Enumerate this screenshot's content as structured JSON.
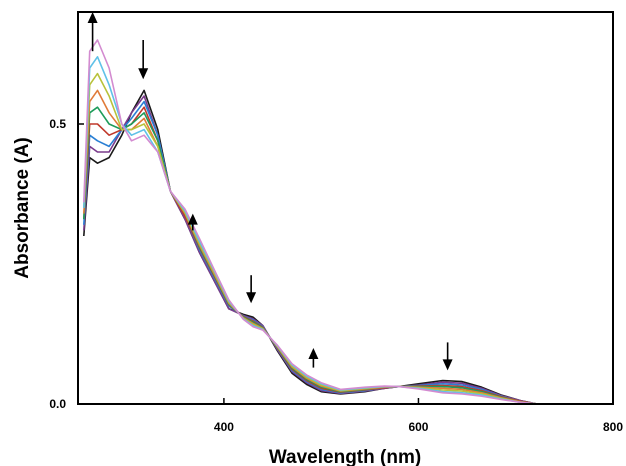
{
  "chart_data": {
    "type": "line",
    "xlabel": "Wavelength (nm)",
    "ylabel": "Absorbance (A)",
    "xlim": [
      250,
      800
    ],
    "ylim": [
      0.0,
      0.7
    ],
    "x_ticks": [
      400,
      600,
      800
    ],
    "x_tick_labels": [
      "400",
      "600",
      "800"
    ],
    "y_ticks": [
      0.0,
      0.5
    ],
    "y_tick_labels": [
      "0.0",
      "0.5"
    ],
    "grid": false,
    "legend": "none",
    "series_count_note_free": true,
    "series": [
      {
        "color": "#1a1a1a",
        "values": [
          [
            256,
            0.3
          ],
          [
            262,
            0.44
          ],
          [
            270,
            0.43
          ],
          [
            282,
            0.44
          ],
          [
            295,
            0.48
          ],
          [
            305,
            0.52
          ],
          [
            318,
            0.56
          ],
          [
            332,
            0.49
          ],
          [
            345,
            0.38
          ],
          [
            360,
            0.33
          ],
          [
            375,
            0.27
          ],
          [
            390,
            0.22
          ],
          [
            405,
            0.17
          ],
          [
            420,
            0.16
          ],
          [
            430,
            0.155
          ],
          [
            440,
            0.14
          ],
          [
            455,
            0.095
          ],
          [
            470,
            0.055
          ],
          [
            485,
            0.035
          ],
          [
            500,
            0.022
          ],
          [
            520,
            0.018
          ],
          [
            545,
            0.022
          ],
          [
            565,
            0.028
          ],
          [
            580,
            0.031
          ],
          [
            600,
            0.036
          ],
          [
            625,
            0.042
          ],
          [
            645,
            0.04
          ],
          [
            665,
            0.03
          ],
          [
            685,
            0.016
          ],
          [
            705,
            0.006
          ],
          [
            722,
            0.0
          ]
        ]
      },
      {
        "color": "#7a3b8c",
        "values": [
          [
            256,
            0.31
          ],
          [
            262,
            0.46
          ],
          [
            270,
            0.45
          ],
          [
            282,
            0.45
          ],
          [
            295,
            0.49
          ],
          [
            305,
            0.52
          ],
          [
            318,
            0.55
          ],
          [
            332,
            0.48
          ],
          [
            345,
            0.38
          ],
          [
            360,
            0.33
          ],
          [
            375,
            0.27
          ],
          [
            390,
            0.22
          ],
          [
            405,
            0.17
          ],
          [
            420,
            0.158
          ],
          [
            430,
            0.152
          ],
          [
            440,
            0.14
          ],
          [
            455,
            0.097
          ],
          [
            470,
            0.058
          ],
          [
            485,
            0.038
          ],
          [
            500,
            0.024
          ],
          [
            520,
            0.019
          ],
          [
            545,
            0.023
          ],
          [
            565,
            0.028
          ],
          [
            580,
            0.031
          ],
          [
            600,
            0.034
          ],
          [
            625,
            0.039
          ],
          [
            645,
            0.037
          ],
          [
            665,
            0.028
          ],
          [
            685,
            0.015
          ],
          [
            705,
            0.006
          ],
          [
            722,
            0.0
          ]
        ]
      },
      {
        "color": "#2a7fd4",
        "values": [
          [
            256,
            0.32
          ],
          [
            262,
            0.48
          ],
          [
            270,
            0.47
          ],
          [
            282,
            0.46
          ],
          [
            295,
            0.49
          ],
          [
            305,
            0.51
          ],
          [
            318,
            0.54
          ],
          [
            332,
            0.48
          ],
          [
            345,
            0.38
          ],
          [
            360,
            0.335
          ],
          [
            375,
            0.275
          ],
          [
            390,
            0.225
          ],
          [
            405,
            0.175
          ],
          [
            420,
            0.157
          ],
          [
            430,
            0.15
          ],
          [
            440,
            0.138
          ],
          [
            455,
            0.099
          ],
          [
            470,
            0.06
          ],
          [
            485,
            0.04
          ],
          [
            500,
            0.026
          ],
          [
            520,
            0.02
          ],
          [
            545,
            0.024
          ],
          [
            565,
            0.029
          ],
          [
            580,
            0.031
          ],
          [
            600,
            0.033
          ],
          [
            625,
            0.036
          ],
          [
            645,
            0.034
          ],
          [
            665,
            0.026
          ],
          [
            685,
            0.014
          ],
          [
            705,
            0.005
          ],
          [
            722,
            0.0
          ]
        ]
      },
      {
        "color": "#c0392b",
        "values": [
          [
            256,
            0.33
          ],
          [
            262,
            0.5
          ],
          [
            270,
            0.5
          ],
          [
            282,
            0.48
          ],
          [
            295,
            0.49
          ],
          [
            305,
            0.5
          ],
          [
            318,
            0.53
          ],
          [
            332,
            0.47
          ],
          [
            345,
            0.38
          ],
          [
            360,
            0.335
          ],
          [
            375,
            0.278
          ],
          [
            390,
            0.228
          ],
          [
            405,
            0.177
          ],
          [
            420,
            0.156
          ],
          [
            430,
            0.148
          ],
          [
            440,
            0.137
          ],
          [
            455,
            0.1
          ],
          [
            470,
            0.062
          ],
          [
            485,
            0.042
          ],
          [
            500,
            0.028
          ],
          [
            520,
            0.021
          ],
          [
            545,
            0.025
          ],
          [
            565,
            0.029
          ],
          [
            580,
            0.031
          ],
          [
            600,
            0.032
          ],
          [
            625,
            0.033
          ],
          [
            645,
            0.031
          ],
          [
            665,
            0.024
          ],
          [
            685,
            0.013
          ],
          [
            705,
            0.005
          ],
          [
            722,
            0.0
          ]
        ]
      },
      {
        "color": "#1e9c5a",
        "values": [
          [
            256,
            0.33
          ],
          [
            262,
            0.52
          ],
          [
            270,
            0.53
          ],
          [
            282,
            0.5
          ],
          [
            295,
            0.49
          ],
          [
            305,
            0.5
          ],
          [
            318,
            0.52
          ],
          [
            332,
            0.47
          ],
          [
            345,
            0.38
          ],
          [
            360,
            0.34
          ],
          [
            375,
            0.28
          ],
          [
            390,
            0.23
          ],
          [
            405,
            0.178
          ],
          [
            420,
            0.155
          ],
          [
            430,
            0.146
          ],
          [
            440,
            0.136
          ],
          [
            455,
            0.101
          ],
          [
            470,
            0.064
          ],
          [
            485,
            0.044
          ],
          [
            500,
            0.03
          ],
          [
            520,
            0.022
          ],
          [
            545,
            0.026
          ],
          [
            565,
            0.03
          ],
          [
            580,
            0.031
          ],
          [
            600,
            0.031
          ],
          [
            625,
            0.031
          ],
          [
            645,
            0.029
          ],
          [
            665,
            0.022
          ],
          [
            685,
            0.012
          ],
          [
            705,
            0.004
          ],
          [
            722,
            0.0
          ]
        ]
      },
      {
        "color": "#e07b39",
        "values": [
          [
            256,
            0.34
          ],
          [
            262,
            0.54
          ],
          [
            270,
            0.56
          ],
          [
            282,
            0.52
          ],
          [
            295,
            0.49
          ],
          [
            305,
            0.49
          ],
          [
            318,
            0.51
          ],
          [
            332,
            0.46
          ],
          [
            345,
            0.38
          ],
          [
            360,
            0.34
          ],
          [
            375,
            0.283
          ],
          [
            390,
            0.232
          ],
          [
            405,
            0.18
          ],
          [
            420,
            0.154
          ],
          [
            430,
            0.144
          ],
          [
            440,
            0.135
          ],
          [
            455,
            0.102
          ],
          [
            470,
            0.066
          ],
          [
            485,
            0.046
          ],
          [
            500,
            0.032
          ],
          [
            520,
            0.023
          ],
          [
            545,
            0.027
          ],
          [
            565,
            0.03
          ],
          [
            580,
            0.031
          ],
          [
            600,
            0.03
          ],
          [
            625,
            0.028
          ],
          [
            645,
            0.026
          ],
          [
            665,
            0.02
          ],
          [
            685,
            0.011
          ],
          [
            705,
            0.004
          ],
          [
            722,
            0.0
          ]
        ]
      },
      {
        "color": "#b8c23a",
        "values": [
          [
            256,
            0.35
          ],
          [
            262,
            0.57
          ],
          [
            270,
            0.59
          ],
          [
            282,
            0.55
          ],
          [
            295,
            0.49
          ],
          [
            305,
            0.49
          ],
          [
            318,
            0.5
          ],
          [
            332,
            0.46
          ],
          [
            345,
            0.38
          ],
          [
            360,
            0.342
          ],
          [
            375,
            0.286
          ],
          [
            390,
            0.235
          ],
          [
            405,
            0.182
          ],
          [
            420,
            0.153
          ],
          [
            430,
            0.142
          ],
          [
            440,
            0.134
          ],
          [
            455,
            0.103
          ],
          [
            470,
            0.068
          ],
          [
            485,
            0.048
          ],
          [
            500,
            0.034
          ],
          [
            520,
            0.024
          ],
          [
            545,
            0.028
          ],
          [
            565,
            0.031
          ],
          [
            580,
            0.031
          ],
          [
            600,
            0.029
          ],
          [
            625,
            0.025
          ],
          [
            645,
            0.023
          ],
          [
            665,
            0.018
          ],
          [
            685,
            0.01
          ],
          [
            705,
            0.003
          ],
          [
            722,
            0.0
          ]
        ]
      },
      {
        "color": "#5fc1e8",
        "values": [
          [
            256,
            0.35
          ],
          [
            262,
            0.6
          ],
          [
            270,
            0.62
          ],
          [
            282,
            0.57
          ],
          [
            295,
            0.5
          ],
          [
            305,
            0.48
          ],
          [
            318,
            0.49
          ],
          [
            332,
            0.45
          ],
          [
            345,
            0.38
          ],
          [
            360,
            0.345
          ],
          [
            375,
            0.29
          ],
          [
            390,
            0.238
          ],
          [
            405,
            0.184
          ],
          [
            420,
            0.152
          ],
          [
            430,
            0.14
          ],
          [
            440,
            0.133
          ],
          [
            455,
            0.104
          ],
          [
            470,
            0.07
          ],
          [
            485,
            0.05
          ],
          [
            500,
            0.036
          ],
          [
            520,
            0.025
          ],
          [
            545,
            0.029
          ],
          [
            565,
            0.031
          ],
          [
            580,
            0.031
          ],
          [
            600,
            0.028
          ],
          [
            625,
            0.022
          ],
          [
            645,
            0.02
          ],
          [
            665,
            0.016
          ],
          [
            685,
            0.009
          ],
          [
            705,
            0.003
          ],
          [
            722,
            0.0
          ]
        ]
      },
      {
        "color": "#d38bd0",
        "values": [
          [
            256,
            0.36
          ],
          [
            262,
            0.63
          ],
          [
            270,
            0.65
          ],
          [
            282,
            0.6
          ],
          [
            295,
            0.5
          ],
          [
            305,
            0.47
          ],
          [
            318,
            0.48
          ],
          [
            332,
            0.45
          ],
          [
            345,
            0.38
          ],
          [
            360,
            0.348
          ],
          [
            375,
            0.295
          ],
          [
            390,
            0.24
          ],
          [
            405,
            0.186
          ],
          [
            420,
            0.151
          ],
          [
            430,
            0.138
          ],
          [
            440,
            0.132
          ],
          [
            455,
            0.105
          ],
          [
            470,
            0.072
          ],
          [
            485,
            0.052
          ],
          [
            500,
            0.038
          ],
          [
            520,
            0.026
          ],
          [
            545,
            0.03
          ],
          [
            565,
            0.032
          ],
          [
            580,
            0.031
          ],
          [
            600,
            0.027
          ],
          [
            625,
            0.02
          ],
          [
            645,
            0.018
          ],
          [
            665,
            0.014
          ],
          [
            685,
            0.008
          ],
          [
            705,
            0.003
          ],
          [
            722,
            0.0
          ]
        ]
      }
    ],
    "annotations": [
      {
        "type": "arrow",
        "direction": "up",
        "x": 265,
        "y_from": 0.63,
        "y_to": 0.7
      },
      {
        "type": "arrow",
        "direction": "down",
        "x": 317,
        "y_from": 0.65,
        "y_to": 0.58
      },
      {
        "type": "arrow",
        "direction": "up",
        "x": 368,
        "y_from": 0.31,
        "y_to": 0.34
      },
      {
        "type": "arrow",
        "direction": "down",
        "x": 428,
        "y_from": 0.23,
        "y_to": 0.18
      },
      {
        "type": "arrow",
        "direction": "up",
        "x": 492,
        "y_from": 0.065,
        "y_to": 0.1
      },
      {
        "type": "arrow",
        "direction": "down",
        "x": 630,
        "y_from": 0.11,
        "y_to": 0.06
      }
    ]
  }
}
